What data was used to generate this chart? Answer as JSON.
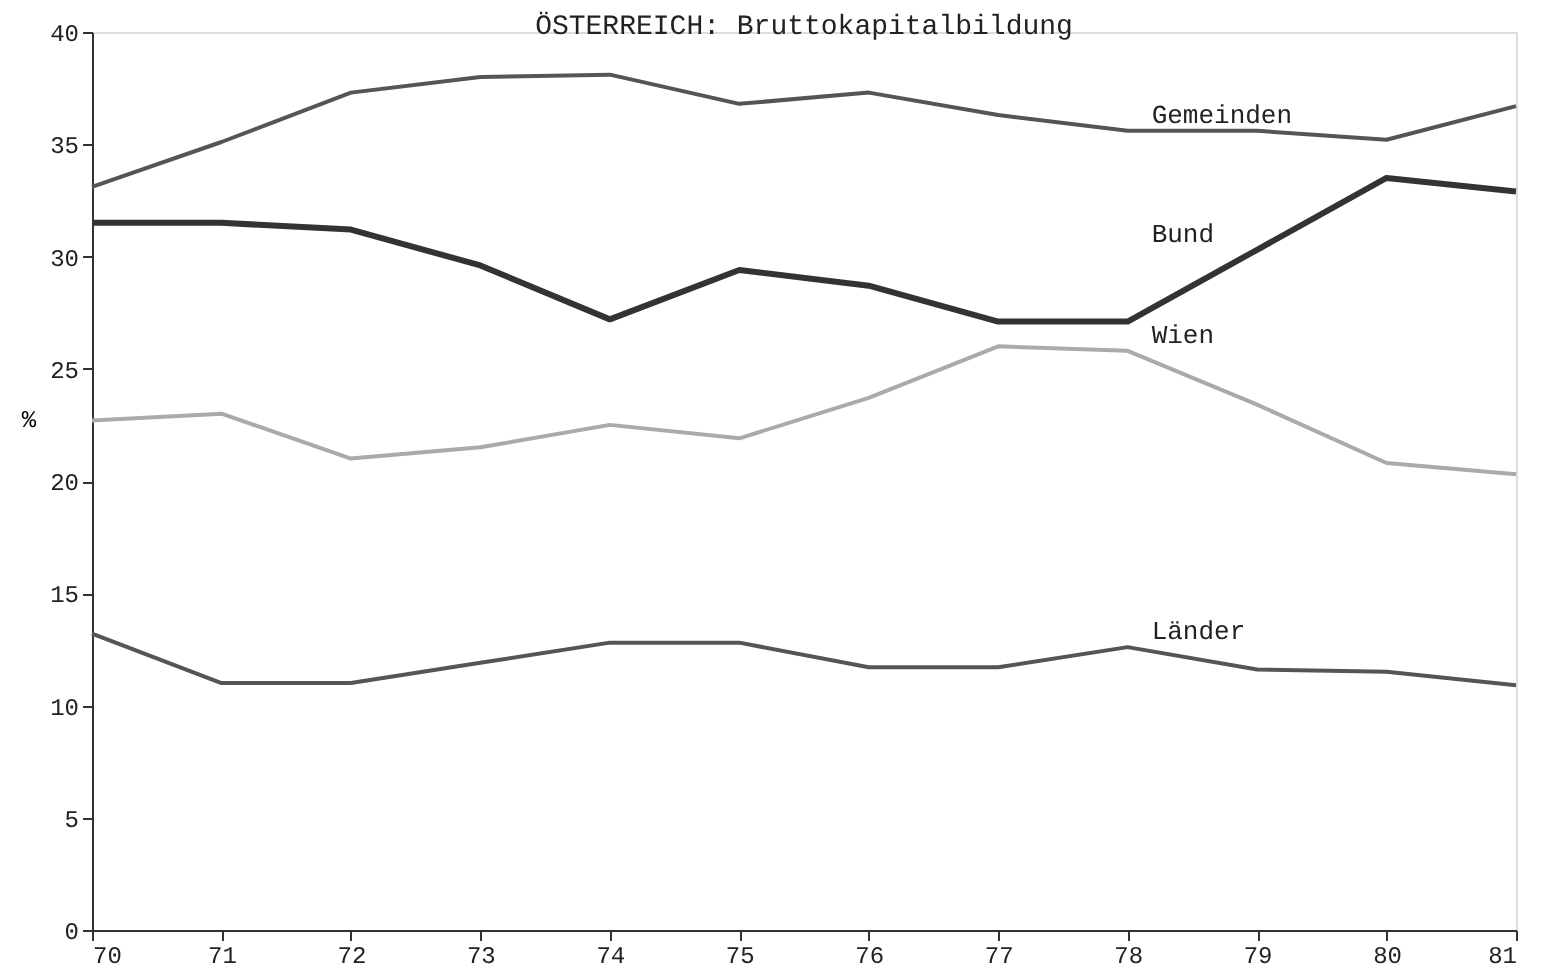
{
  "chart_data": {
    "type": "line",
    "title": "ÖSTERREICH: Bruttokapitalbildung",
    "ylabel": "%",
    "x": [
      70,
      71,
      72,
      73,
      74,
      75,
      76,
      77,
      78,
      79,
      80,
      81
    ],
    "series": [
      {
        "name": "Gemeinden",
        "color": "#555555",
        "values": [
          33.1,
          35.1,
          37.3,
          38.0,
          38.1,
          36.8,
          37.3,
          36.3,
          35.6,
          35.6,
          35.2,
          36.7
        ]
      },
      {
        "name": "Bund",
        "color": "#333333",
        "values": [
          31.5,
          31.5,
          31.2,
          29.6,
          27.2,
          29.4,
          28.7,
          27.1,
          27.1,
          30.3,
          33.5,
          32.9
        ]
      },
      {
        "name": "Wien",
        "color": "#aaaaaa",
        "values": [
          22.7,
          23.0,
          21.0,
          21.5,
          22.5,
          21.9,
          23.7,
          26.0,
          25.8,
          23.4,
          20.8,
          20.3
        ]
      },
      {
        "name": "Länder",
        "color": "#555555",
        "values": [
          13.2,
          11.0,
          11.0,
          11.9,
          12.8,
          12.8,
          11.7,
          11.7,
          12.6,
          11.6,
          11.5,
          10.9
        ]
      }
    ],
    "xlim": [
      70,
      81
    ],
    "xticks": [
      70,
      71,
      72,
      73,
      74,
      75,
      76,
      77,
      78,
      79,
      80,
      81
    ],
    "ylim": [
      0,
      40
    ],
    "yticks": [
      0,
      5,
      10,
      15,
      20,
      25,
      30,
      35,
      40
    ],
    "grid": false,
    "legend": false,
    "marker": "none",
    "line_style": "solid"
  }
}
